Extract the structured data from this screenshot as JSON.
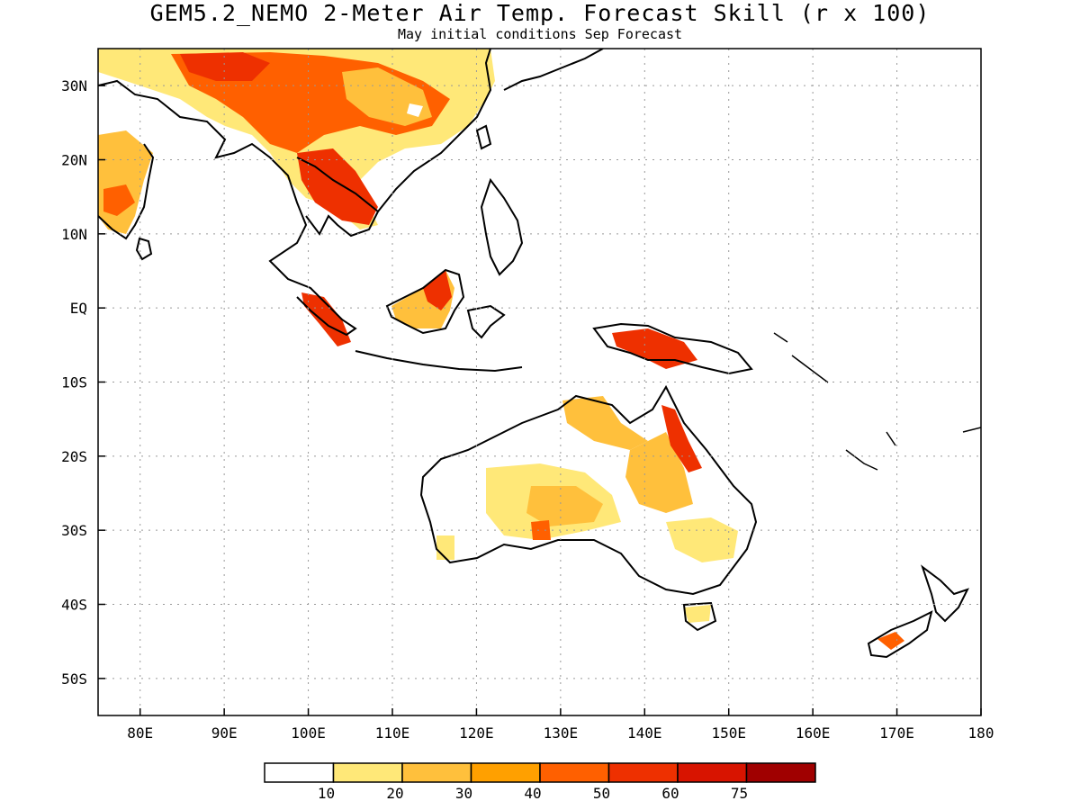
{
  "title": "GEM5.2_NEMO 2-Meter Air Temp. Forecast Skill (r x 100)",
  "subtitle": "May initial conditions  Sep Forecast",
  "map": {
    "lon_range": [
      75,
      180
    ],
    "lat_range": [
      -55,
      35
    ],
    "grid": "dotted",
    "lon_ticks": [
      {
        "value": 80,
        "label": "80E"
      },
      {
        "value": 90,
        "label": "90E"
      },
      {
        "value": 100,
        "label": "100E"
      },
      {
        "value": 110,
        "label": "110E"
      },
      {
        "value": 120,
        "label": "120E"
      },
      {
        "value": 130,
        "label": "130E"
      },
      {
        "value": 140,
        "label": "140E"
      },
      {
        "value": 150,
        "label": "150E"
      },
      {
        "value": 160,
        "label": "160E"
      },
      {
        "value": 170,
        "label": "170E"
      },
      {
        "value": 180,
        "label": "180"
      }
    ],
    "lat_ticks": [
      {
        "value": 30,
        "label": "30N"
      },
      {
        "value": 20,
        "label": "20N"
      },
      {
        "value": 10,
        "label": "10N"
      },
      {
        "value": 0,
        "label": "EQ"
      },
      {
        "value": -10,
        "label": "10S"
      },
      {
        "value": -20,
        "label": "20S"
      },
      {
        "value": -30,
        "label": "30S"
      },
      {
        "value": -40,
        "label": "40S"
      },
      {
        "value": -50,
        "label": "50S"
      }
    ]
  },
  "colorbar": {
    "colors": [
      "#ffffff",
      "#ffe878",
      "#ffc03c",
      "#ffa000",
      "#ff6000",
      "#ee3000",
      "#d81400",
      "#a00000"
    ],
    "labels": [
      "10",
      "20",
      "30",
      "40",
      "50",
      "60",
      "75"
    ]
  }
}
